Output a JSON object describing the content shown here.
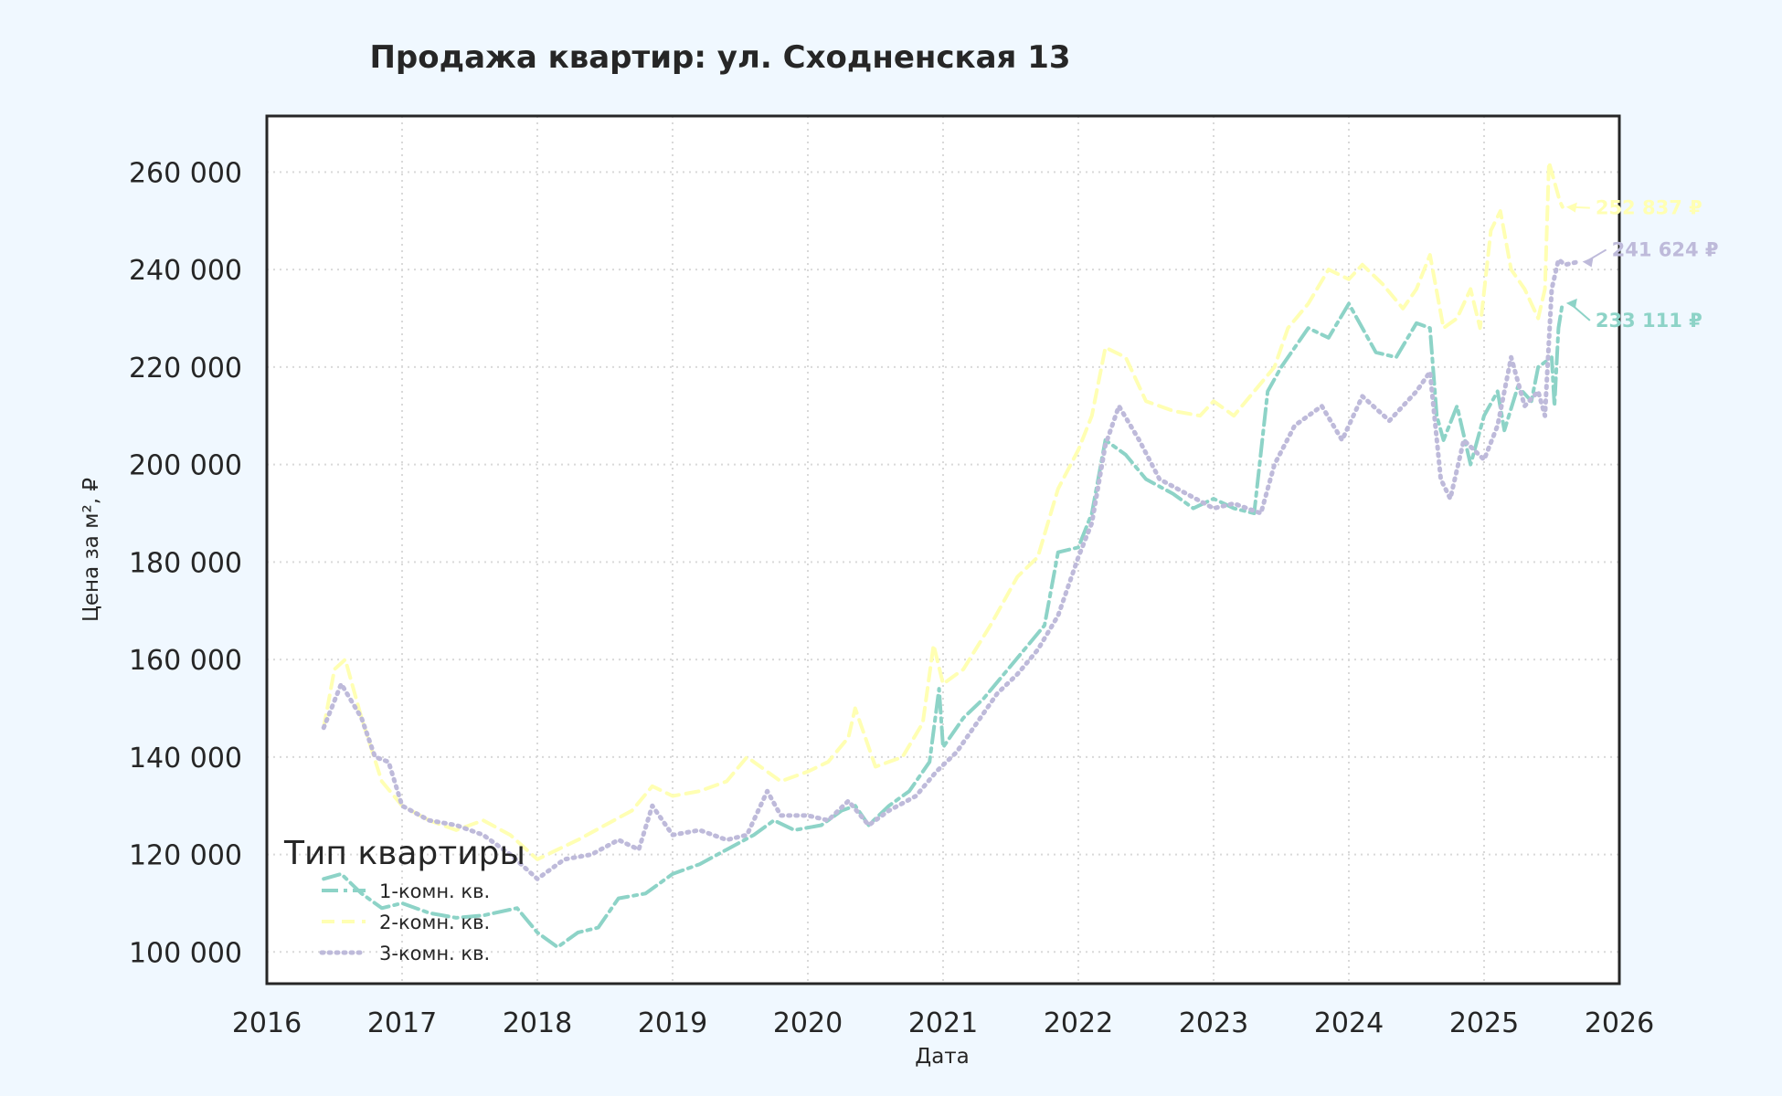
{
  "chart_data": {
    "type": "line",
    "title": "Продажа квартир: ул. Сходненская 13",
    "xlabel": "Дата",
    "ylabel": "Цена за м², ₽",
    "x_ticks": [
      "2016",
      "2017",
      "2018",
      "2019",
      "2020",
      "2021",
      "2022",
      "2023",
      "2024",
      "2025",
      "2026"
    ],
    "y_ticks": [
      "100 000",
      "120 000",
      "140 000",
      "160 000",
      "180 000",
      "200 000",
      "220 000",
      "240 000",
      "260 000"
    ],
    "xlim": [
      2016.0,
      2026.0
    ],
    "ylim": [
      93500,
      271500
    ],
    "grid": true,
    "legend": {
      "title": "Тип квартиры",
      "location": "lower-left"
    },
    "series": [
      {
        "name": "1-комн. кв.",
        "color": "#8dd3c7",
        "style": "dashdot",
        "x": [
          2016.42,
          2016.55,
          2016.7,
          2016.85,
          2017.0,
          2017.2,
          2017.4,
          2017.6,
          2017.85,
          2018.0,
          2018.15,
          2018.3,
          2018.45,
          2018.6,
          2018.8,
          2019.0,
          2019.2,
          2019.4,
          2019.6,
          2019.75,
          2019.9,
          2020.1,
          2020.25,
          2020.35,
          2020.45,
          2020.6,
          2020.75,
          2020.9,
          2020.97,
          2021.0,
          2021.15,
          2021.3,
          2021.45,
          2021.6,
          2021.75,
          2021.85,
          2022.0,
          2022.1,
          2022.2,
          2022.35,
          2022.5,
          2022.7,
          2022.85,
          2023.0,
          2023.15,
          2023.3,
          2023.4,
          2023.5,
          2023.7,
          2023.85,
          2024.0,
          2024.2,
          2024.35,
          2024.5,
          2024.6,
          2024.65,
          2024.7,
          2024.8,
          2024.9,
          2025.0,
          2025.1,
          2025.15,
          2025.25,
          2025.35,
          2025.4,
          2025.5,
          2025.52,
          2025.55,
          2025.58
        ],
        "y": [
          115000,
          116000,
          112000,
          109000,
          110000,
          108000,
          107000,
          107500,
          109000,
          104000,
          101000,
          104000,
          105000,
          111000,
          112000,
          116000,
          118000,
          121000,
          124000,
          127000,
          125000,
          126000,
          129000,
          130000,
          126000,
          130000,
          133000,
          139000,
          154000,
          142000,
          148000,
          152000,
          157000,
          162000,
          167000,
          182000,
          183000,
          190000,
          205000,
          202000,
          197000,
          194000,
          191000,
          193000,
          191000,
          190000,
          215000,
          220000,
          228000,
          226000,
          233000,
          223000,
          222000,
          229000,
          228000,
          210000,
          205000,
          212000,
          200000,
          210000,
          215000,
          207000,
          216000,
          213000,
          220000,
          222000,
          212000,
          228000,
          233111
        ],
        "end_label": "233 111 ₽"
      },
      {
        "name": "2-комн. кв.",
        "color": "#ffffb3",
        "style": "dashed",
        "x": [
          2016.42,
          2016.5,
          2016.58,
          2016.7,
          2016.85,
          2017.0,
          2017.2,
          2017.4,
          2017.6,
          2017.8,
          2018.0,
          2018.15,
          2018.3,
          2018.5,
          2018.7,
          2018.85,
          2019.0,
          2019.2,
          2019.4,
          2019.55,
          2019.65,
          2019.8,
          2020.0,
          2020.15,
          2020.3,
          2020.35,
          2020.5,
          2020.7,
          2020.85,
          2020.93,
          2021.0,
          2021.15,
          2021.35,
          2021.55,
          2021.7,
          2021.85,
          2022.0,
          2022.1,
          2022.2,
          2022.35,
          2022.5,
          2022.7,
          2022.9,
          2023.0,
          2023.15,
          2023.3,
          2023.45,
          2023.55,
          2023.7,
          2023.85,
          2024.0,
          2024.1,
          2024.25,
          2024.4,
          2024.5,
          2024.6,
          2024.7,
          2024.8,
          2024.9,
          2024.97,
          2025.05,
          2025.12,
          2025.2,
          2025.3,
          2025.4,
          2025.45,
          2025.48,
          2025.52,
          2025.56,
          2025.58
        ],
        "y": [
          146000,
          158000,
          160000,
          148000,
          135000,
          130000,
          127000,
          125000,
          127000,
          124000,
          119000,
          121000,
          123000,
          126000,
          129000,
          134000,
          132000,
          133000,
          135000,
          140000,
          138000,
          135000,
          137000,
          139000,
          144000,
          150000,
          138000,
          140000,
          147000,
          163000,
          155000,
          158000,
          167000,
          177000,
          181000,
          195000,
          203000,
          210000,
          224000,
          222000,
          213000,
          211000,
          210000,
          213000,
          210000,
          215000,
          220000,
          228000,
          233000,
          240000,
          238000,
          241000,
          237000,
          232000,
          236000,
          243000,
          228000,
          230000,
          236000,
          228000,
          248000,
          252000,
          240000,
          236000,
          230000,
          236000,
          262000,
          258000,
          254000,
          252837
        ],
        "end_label": "252 837 ₽"
      },
      {
        "name": "3-комн. кв.",
        "color": "#bebada",
        "style": "dotted",
        "x": [
          2016.42,
          2016.55,
          2016.7,
          2016.8,
          2016.9,
          2017.0,
          2017.2,
          2017.4,
          2017.6,
          2017.8,
          2018.0,
          2018.2,
          2018.4,
          2018.6,
          2018.75,
          2018.85,
          2019.0,
          2019.2,
          2019.4,
          2019.55,
          2019.7,
          2019.8,
          2020.0,
          2020.15,
          2020.3,
          2020.45,
          2020.6,
          2020.8,
          2020.95,
          2021.1,
          2021.25,
          2021.4,
          2021.55,
          2021.7,
          2021.85,
          2022.0,
          2022.1,
          2022.2,
          2022.3,
          2022.45,
          2022.6,
          2022.8,
          2023.0,
          2023.15,
          2023.35,
          2023.45,
          2023.6,
          2023.8,
          2023.95,
          2024.1,
          2024.3,
          2024.5,
          2024.6,
          2024.68,
          2024.75,
          2024.85,
          2025.0,
          2025.1,
          2025.2,
          2025.3,
          2025.4,
          2025.45,
          2025.5,
          2025.55,
          2025.6,
          2025.7
        ],
        "y": [
          146000,
          155000,
          148000,
          140000,
          139000,
          130000,
          127000,
          126000,
          124000,
          120000,
          115000,
          119000,
          120000,
          123000,
          121000,
          130000,
          124000,
          125000,
          123000,
          124000,
          133000,
          128000,
          128000,
          127000,
          131000,
          126000,
          129000,
          132000,
          137000,
          141000,
          147000,
          153000,
          157000,
          162000,
          169000,
          181000,
          188000,
          204000,
          212000,
          205000,
          197000,
          194000,
          191000,
          192000,
          190000,
          200000,
          208000,
          212000,
          205000,
          214000,
          209000,
          215000,
          219000,
          197000,
          193000,
          205000,
          201000,
          208000,
          222000,
          212000,
          215000,
          210000,
          236000,
          242000,
          241000,
          241624
        ],
        "end_label": "241 624 ₽"
      }
    ]
  }
}
